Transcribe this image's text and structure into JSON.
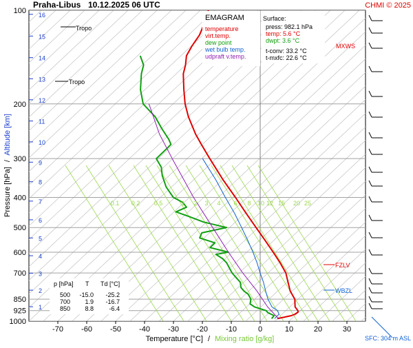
{
  "header": {
    "station": "Praha-Libus",
    "datetime": "10.12.2025 06 UTC",
    "copyright": "CHMI © 2025"
  },
  "legend": {
    "title": "EMAGRAM",
    "items": [
      {
        "label": "temperature",
        "color": "#e00000"
      },
      {
        "label": "virt.temp.",
        "color": "#e00000"
      },
      {
        "label": "dew point",
        "color": "#10a010"
      },
      {
        "label": "wet bulb temp.",
        "color": "#1060d0"
      },
      {
        "label": "udpraft v.temp.",
        "color": "#9020b0"
      }
    ]
  },
  "surface": {
    "title": "Surface:",
    "press": "press: 982.1 hPa",
    "temp": "temp: 5.6 °C",
    "dwpt": "dwpt: 3.6 °C",
    "tconv": "t-conv: 33.2 °C",
    "tmxfc": "t-mxfc: 22.6 °C"
  },
  "table": {
    "headers": [
      "p [hPa]",
      "T",
      "Td [°C]"
    ],
    "rows": [
      [
        "500",
        "-15.0",
        "-25.2"
      ],
      [
        "700",
        "1.9",
        "-16.7"
      ],
      [
        "850",
        "8.8",
        "-6.4"
      ]
    ]
  },
  "axes": {
    "xlabel_temp": "Temperature [°C]",
    "xlabel_sep": "/",
    "xlabel_mix": "Mixing ratio [g/kg]",
    "ylabel_pressure": "Pressure [hPa]",
    "ylabel_sep": "/",
    "ylabel_altitude": "Altitude [km]"
  },
  "annotations": {
    "tropo1": "Tropo",
    "tropo2": "Tropo",
    "mxws": "MXWS",
    "fzlv": "FZLV",
    "wbzl": "WBZL",
    "sfc": "SFC: 304 m ASL"
  },
  "colors": {
    "temperature": "#e00000",
    "dewpoint": "#10a010",
    "wetbulb": "#1060d0",
    "parcel": "#9020b0",
    "mixing": "#9ad84a",
    "grid": "#a0a0a0",
    "altitude": "#1a3fcc"
  },
  "chart_data": {
    "type": "line",
    "title": "Praha-Libus 10.12.2025 06 UTC",
    "xlabel": "Temperature [°C]",
    "ylabel": "Pressure [hPa]",
    "xlim": [
      -80,
      40
    ],
    "ylim": [
      1000,
      100
    ],
    "y_scale": "log",
    "x_ticks": [
      -70,
      -60,
      -50,
      -40,
      -30,
      -20,
      -10,
      0,
      10,
      20,
      30
    ],
    "pressure_ticks": [
      100,
      200,
      300,
      400,
      500,
      600,
      700,
      850,
      925,
      1000
    ],
    "altitude_ticks_km": [
      1,
      2,
      3,
      4,
      5,
      6,
      7,
      8,
      9,
      10,
      11,
      12,
      13,
      14,
      15,
      16
    ],
    "mixing_ratio_labels": [
      "0.1",
      "0.2",
      "0.5",
      "1",
      "2",
      "3",
      "4",
      "6",
      "8",
      "10",
      "12",
      "15",
      "20",
      "25"
    ],
    "series": [
      {
        "name": "temperature",
        "points": [
          [
            982,
            5.6
          ],
          [
            960,
            10.0
          ],
          [
            950,
            11.0
          ],
          [
            935,
            11.8
          ],
          [
            925,
            11.5
          ],
          [
            900,
            10.0
          ],
          [
            850,
            8.8
          ],
          [
            800,
            6.0
          ],
          [
            750,
            4.0
          ],
          [
            700,
            1.9
          ],
          [
            650,
            -1.5
          ],
          [
            600,
            -5.5
          ],
          [
            550,
            -10.0
          ],
          [
            500,
            -15.0
          ],
          [
            450,
            -20.5
          ],
          [
            400,
            -26.5
          ],
          [
            350,
            -33.5
          ],
          [
            300,
            -41.0
          ],
          [
            270,
            -46.0
          ],
          [
            250,
            -49.5
          ],
          [
            220,
            -54.5
          ],
          [
            200,
            -57.5
          ],
          [
            180,
            -60.0
          ],
          [
            160,
            -62.5
          ],
          [
            150,
            -63.0
          ],
          [
            140,
            -64.0
          ],
          [
            130,
            -63.5
          ],
          [
            120,
            -62.5
          ],
          [
            110,
            -62.5
          ],
          [
            100,
            -63.0
          ]
        ]
      },
      {
        "name": "dew point",
        "points": [
          [
            982,
            3.6
          ],
          [
            960,
            4.0
          ],
          [
            940,
            1.5
          ],
          [
            925,
            0.5
          ],
          [
            900,
            -4.0
          ],
          [
            880,
            -6.0
          ],
          [
            850,
            -6.4
          ],
          [
            820,
            -8.0
          ],
          [
            800,
            -10.0
          ],
          [
            780,
            -11.5
          ],
          [
            750,
            -12.5
          ],
          [
            720,
            -15.0
          ],
          [
            700,
            -16.7
          ],
          [
            680,
            -18.0
          ],
          [
            650,
            -20.0
          ],
          [
            630,
            -22.0
          ],
          [
            610,
            -25.0
          ],
          [
            600,
            -21.0
          ],
          [
            580,
            -28.0
          ],
          [
            560,
            -27.0
          ],
          [
            540,
            -33.0
          ],
          [
            520,
            -33.0
          ],
          [
            500,
            -25.2
          ],
          [
            480,
            -34.0
          ],
          [
            460,
            -40.0
          ],
          [
            445,
            -45.0
          ],
          [
            430,
            -42.0
          ],
          [
            415,
            -44.0
          ],
          [
            400,
            -48.0
          ],
          [
            370,
            -52.0
          ],
          [
            340,
            -55.0
          ],
          [
            320,
            -56.5
          ],
          [
            300,
            -59.5
          ],
          [
            280,
            -57.5
          ],
          [
            270,
            -56.5
          ],
          [
            260,
            -58.0
          ],
          [
            240,
            -62.0
          ],
          [
            220,
            -66.0
          ],
          [
            200,
            -72.0
          ],
          [
            180,
            -75.0
          ],
          [
            160,
            -77.0
          ],
          [
            150,
            -77.5
          ],
          [
            140,
            -80.0
          ]
        ]
      },
      {
        "name": "wet bulb temp.",
        "points": [
          [
            982,
            4.6
          ],
          [
            950,
            5.5
          ],
          [
            925,
            4.5
          ],
          [
            900,
            2.0
          ],
          [
            850,
            -0.5
          ],
          [
            800,
            -2.5
          ],
          [
            750,
            -4.5
          ],
          [
            700,
            -7.0
          ],
          [
            650,
            -9.5
          ],
          [
            600,
            -12.5
          ],
          [
            550,
            -16.0
          ],
          [
            500,
            -20.0
          ],
          [
            450,
            -24.5
          ],
          [
            400,
            -30.0
          ],
          [
            350,
            -36.0
          ],
          [
            300,
            -43.5
          ]
        ]
      },
      {
        "name": "udpraft v.temp.",
        "points": [
          [
            982,
            6.0
          ],
          [
            900,
            0.5
          ],
          [
            800,
            -5.5
          ],
          [
            700,
            -13.0
          ],
          [
            600,
            -21.0
          ],
          [
            500,
            -30.0
          ],
          [
            400,
            -41.0
          ],
          [
            300,
            -54.0
          ],
          [
            250,
            -62.0
          ],
          [
            200,
            -70.0
          ]
        ]
      }
    ]
  }
}
